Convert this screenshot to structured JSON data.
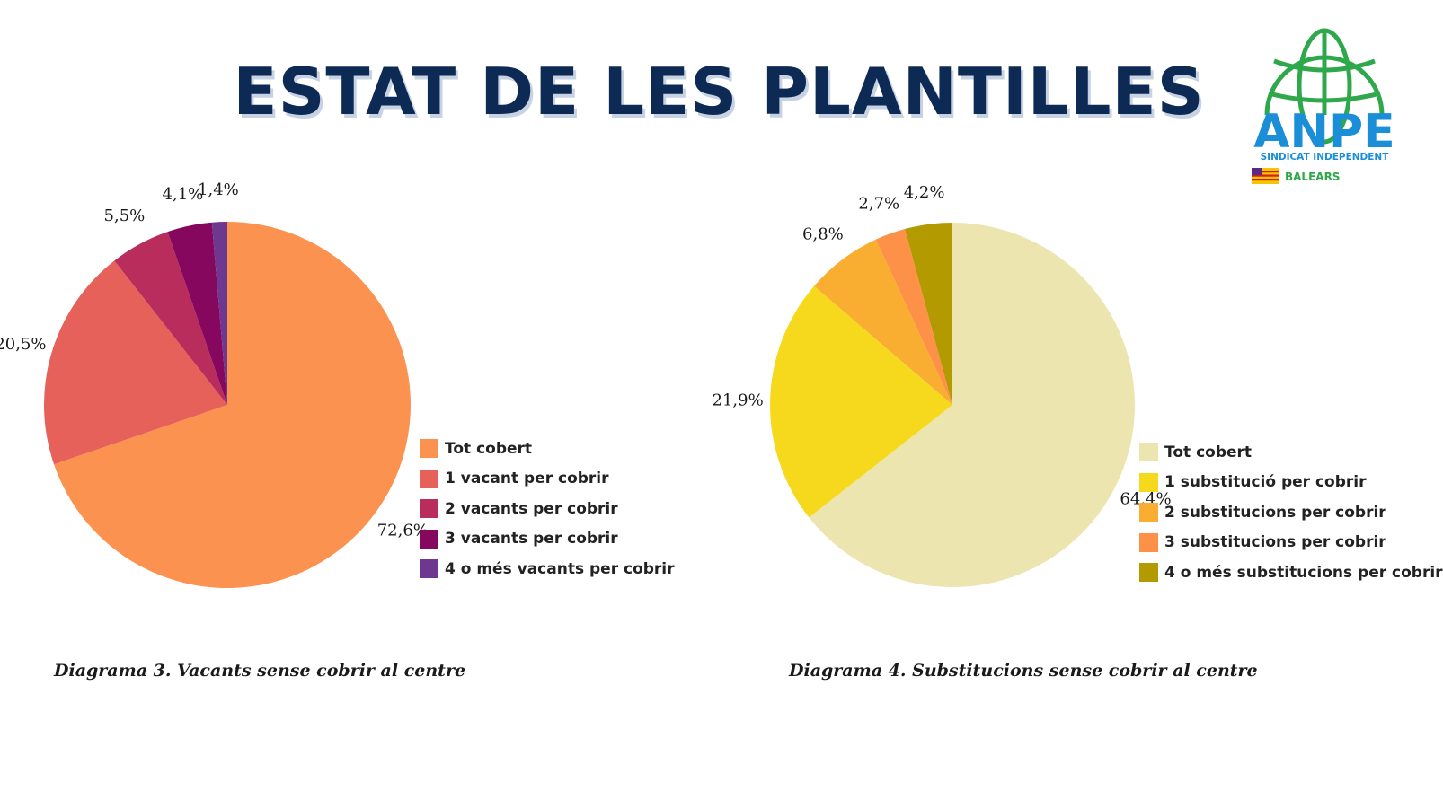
{
  "page": {
    "title": "ESTAT DE LES PLANTILLES",
    "title_color": "#0d2a55"
  },
  "logo": {
    "brand": "ANPE",
    "subtitle": "SINDICAT INDEPENDENT",
    "region": "BALEARS",
    "brand_color": "#1a8fd8",
    "globe_color": "#2ea84a"
  },
  "chart_data": [
    {
      "type": "pie",
      "caption": "Diagrama 3. Vacants sense cobrir al centre",
      "slices": [
        {
          "label": "Tot cobert",
          "value": 72.6,
          "display": "72,6%",
          "color": "#fc924f"
        },
        {
          "label": "1 vacant per cobrir",
          "value": 20.5,
          "display": "20,5%",
          "color": "#e5615a"
        },
        {
          "label": "2 vacants per cobrir",
          "value": 5.5,
          "display": "5,5%",
          "color": "#b82d5c"
        },
        {
          "label": "3 vacants per cobrir",
          "value": 4.1,
          "display": "4,1%",
          "color": "#85085e"
        },
        {
          "label": "4 o més vacants per cobrir",
          "value": 1.4,
          "display": "1,4%",
          "color": "#6e3890"
        }
      ],
      "legend_position": "bottom-right"
    },
    {
      "type": "pie",
      "caption": "Diagrama 4. Substitucions sense cobrir al centre",
      "slices": [
        {
          "label": "Tot cobert",
          "value": 64.4,
          "display": "64,4%",
          "color": "#ede5b0"
        },
        {
          "label": "1 substitució per cobrir",
          "value": 21.9,
          "display": "21,9%",
          "color": "#f6d91d"
        },
        {
          "label": "2 substitucions per cobrir",
          "value": 6.8,
          "display": "6,8%",
          "color": "#f9ae32"
        },
        {
          "label": "3 substitucions per cobrir",
          "value": 2.7,
          "display": "2,7%",
          "color": "#fd9148"
        },
        {
          "label": "4 o més substitucions per cobrir",
          "value": 4.2,
          "display": "4,2%",
          "color": "#b39a00"
        }
      ],
      "legend_position": "bottom-right"
    }
  ]
}
